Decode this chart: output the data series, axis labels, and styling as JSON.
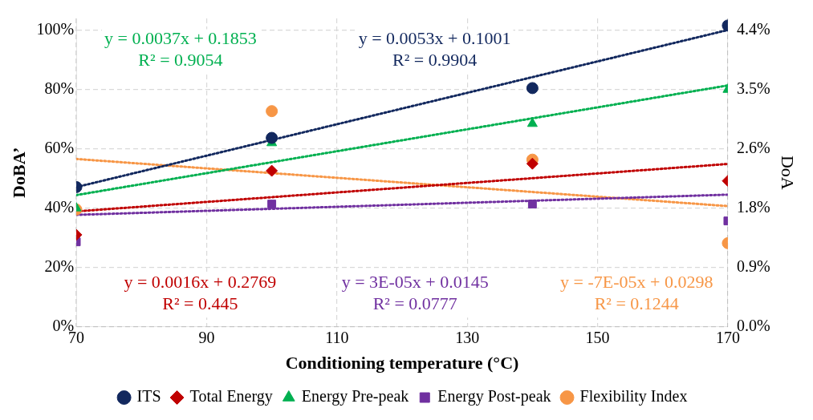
{
  "chart_data": {
    "type": "scatter",
    "xlabel": "Conditioning temperature (°C)",
    "ylabel": "DoBA’",
    "y2label": "DoA",
    "xlim": [
      70,
      170
    ],
    "xticks": [
      70,
      90,
      110,
      130,
      150,
      170
    ],
    "ylim": [
      0,
      104
    ],
    "yticks": [
      {
        "value": 0,
        "label": "0%"
      },
      {
        "value": 20,
        "label": "20%"
      },
      {
        "value": 40,
        "label": "40%"
      },
      {
        "value": 60,
        "label": "60%"
      },
      {
        "value": 80,
        "label": "80%"
      },
      {
        "value": 100,
        "label": "100%"
      }
    ],
    "y2lim": [
      0,
      4.576
    ],
    "y2ticks": [
      {
        "value": 0,
        "label": "0.0%"
      },
      {
        "value": 0.88,
        "label": "0.9%"
      },
      {
        "value": 1.76,
        "label": "1.8%"
      },
      {
        "value": 2.64,
        "label": "2.6%"
      },
      {
        "value": 3.52,
        "label": "3.5%"
      },
      {
        "value": 4.4,
        "label": "4.4%"
      }
    ],
    "grid": true,
    "legend": "bottom",
    "series": [
      {
        "name": "ITS",
        "color": "#12285e",
        "marker": "circle",
        "x": [
          70,
          100,
          140,
          170
        ],
        "values": [
          47.1,
          63.7,
          80.5,
          101.6
        ]
      },
      {
        "name": "Total Energy",
        "color": "#c00000",
        "marker": "diamond",
        "x": [
          70,
          100,
          140,
          170
        ],
        "values": [
          31,
          52.6,
          55,
          49.2
        ]
      },
      {
        "name": "Energy Pre-peak",
        "color": "#00b050",
        "marker": "triangle",
        "x": [
          70,
          100,
          140,
          170
        ],
        "values": [
          40,
          62,
          68.5,
          80
        ]
      },
      {
        "name": "Energy Post-peak",
        "color": "#7030a0",
        "marker": "square",
        "axis": "y2",
        "x": [
          70,
          100,
          140,
          170
        ],
        "values": [
          1.26,
          1.82,
          1.82,
          1.57
        ]
      },
      {
        "name": "Flexibility Index",
        "color": "#f79646",
        "marker": "circle",
        "axis": "y2",
        "x": [
          70,
          100,
          140,
          170
        ],
        "values": [
          1.74,
          3.2,
          2.48,
          1.24
        ]
      },
      {
        "type": "line",
        "color": "#00b050",
        "line_style": "dotted",
        "x": [
          70,
          170
        ],
        "values": [
          44.4,
          81.4
        ]
      },
      {
        "type": "line",
        "color": "#12285e",
        "line_style": "dotted",
        "x": [
          70,
          170
        ],
        "values": [
          47.1,
          100.1
        ]
      },
      {
        "type": "line",
        "color": "#c00000",
        "line_style": "dotted",
        "x": [
          70,
          170
        ],
        "values": [
          38.9,
          54.9
        ]
      },
      {
        "type": "line",
        "color": "#7030a0",
        "line_style": "dotted",
        "axis": "y2",
        "x": [
          70,
          170
        ],
        "values": [
          1.66,
          1.96
        ]
      },
      {
        "type": "line",
        "color": "#f79646",
        "line_style": "dotted",
        "axis": "y2",
        "x": [
          70,
          170
        ],
        "values": [
          2.49,
          1.79
        ]
      }
    ],
    "annotations": [
      "y = 0.0037x + 0.1853\nR² = 0.9054",
      "y = 0.0053x + 0.1001\nR² = 0.9904",
      "y = 0.0016x + 0.2769\nR² = 0.445",
      "y = 3E-05x + 0.0145\nR² = 0.0777",
      "y = -7E-05x + 0.0298\nR² = 0.1244"
    ]
  }
}
